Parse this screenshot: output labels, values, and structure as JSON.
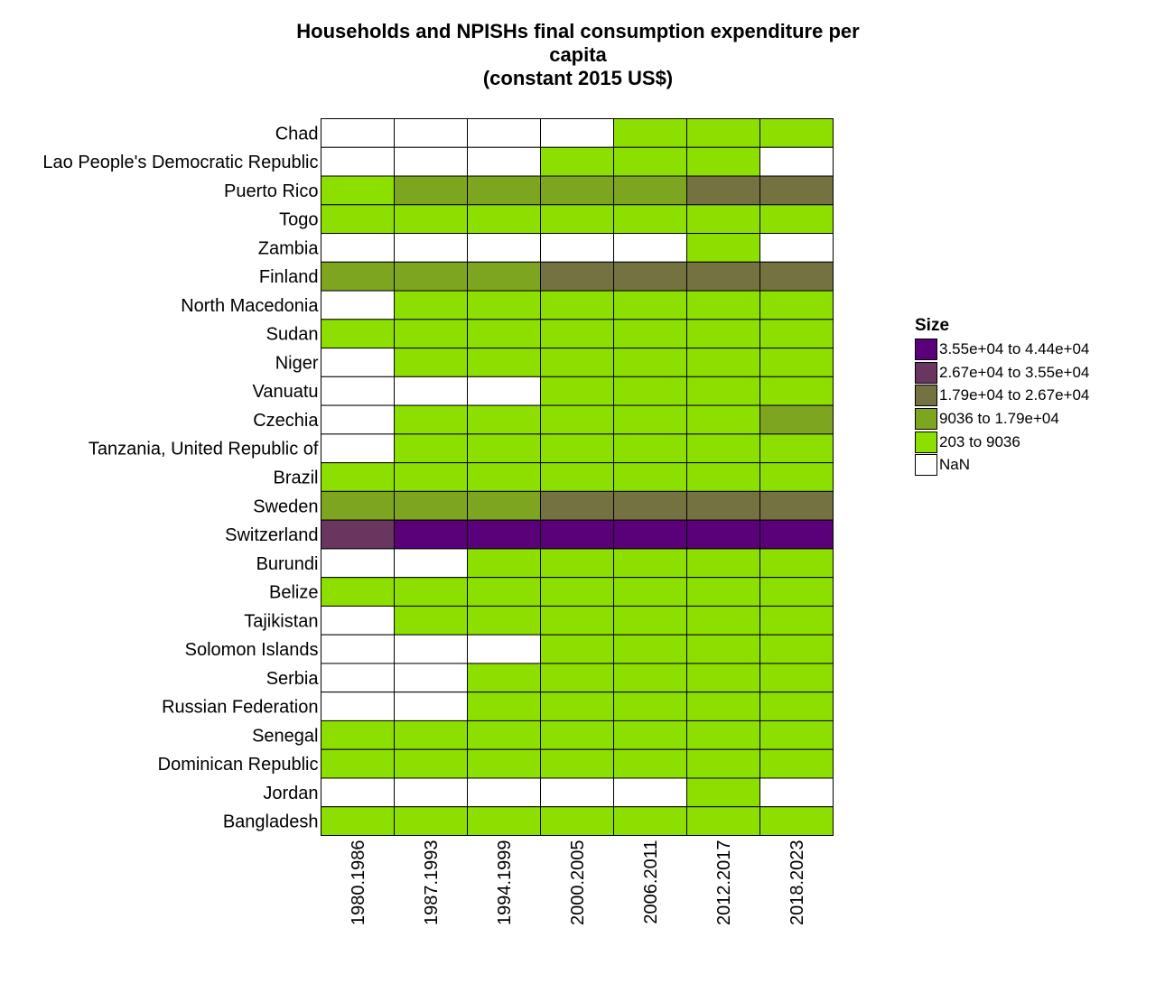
{
  "chart_data": {
    "type": "heatmap",
    "title": [
      "Households and NPISHs final consumption expenditure per",
      "capita",
      "(constant 2015 US$)"
    ],
    "xlabel": "",
    "ylabel": "",
    "x_categories": [
      "1980.1986",
      "1987.1993",
      "1994.1999",
      "2000.2005",
      "2006.2011",
      "2012.2017",
      "2018.2023"
    ],
    "y_categories": [
      "Chad",
      "Lao People's Democratic Republic",
      "Puerto Rico",
      "Togo",
      "Zambia",
      "Finland",
      "North Macedonia",
      "Sudan",
      "Niger",
      "Vanuatu",
      "Czechia",
      "Tanzania, United Republic of",
      "Brazil",
      "Sweden",
      "Switzerland",
      "Burundi",
      "Belize",
      "Tajikistan",
      "Solomon Islands",
      "Serbia",
      "Russian Federation",
      "Senegal",
      "Dominican Republic",
      "Jordan",
      "Bangladesh"
    ],
    "legend": {
      "title": "Size",
      "placement": "right",
      "bins": [
        {
          "label": "3.55e+04 to 4.44e+04",
          "color": "#5a0079"
        },
        {
          "label": "2.67e+04 to 3.55e+04",
          "color": "#68365e"
        },
        {
          "label": "1.79e+04 to 2.67e+04",
          "color": "#737240"
        },
        {
          "label": "9036 to 1.79e+04",
          "color": "#7ea51f"
        },
        {
          "label": "203 to 9036",
          "color": "#8ddf00"
        },
        {
          "label": "NaN",
          "color": "#ffffff"
        }
      ]
    },
    "cell_bins": [
      [
        5,
        5,
        5,
        5,
        4,
        4,
        4
      ],
      [
        5,
        5,
        5,
        4,
        4,
        4,
        5
      ],
      [
        4,
        3,
        3,
        3,
        3,
        2,
        2
      ],
      [
        4,
        4,
        4,
        4,
        4,
        4,
        4
      ],
      [
        5,
        5,
        5,
        5,
        5,
        4,
        5
      ],
      [
        3,
        3,
        3,
        2,
        2,
        2,
        2
      ],
      [
        5,
        4,
        4,
        4,
        4,
        4,
        4
      ],
      [
        4,
        4,
        4,
        4,
        4,
        4,
        4
      ],
      [
        5,
        4,
        4,
        4,
        4,
        4,
        4
      ],
      [
        5,
        5,
        5,
        4,
        4,
        4,
        4
      ],
      [
        5,
        4,
        4,
        4,
        4,
        4,
        3
      ],
      [
        5,
        4,
        4,
        4,
        4,
        4,
        4
      ],
      [
        4,
        4,
        4,
        4,
        4,
        4,
        4
      ],
      [
        3,
        3,
        3,
        2,
        2,
        2,
        2
      ],
      [
        1,
        0,
        0,
        0,
        0,
        0,
        0
      ],
      [
        5,
        5,
        4,
        4,
        4,
        4,
        4
      ],
      [
        4,
        4,
        4,
        4,
        4,
        4,
        4
      ],
      [
        5,
        4,
        4,
        4,
        4,
        4,
        4
      ],
      [
        5,
        5,
        5,
        4,
        4,
        4,
        4
      ],
      [
        5,
        5,
        4,
        4,
        4,
        4,
        4
      ],
      [
        5,
        5,
        4,
        4,
        4,
        4,
        4
      ],
      [
        4,
        4,
        4,
        4,
        4,
        4,
        4
      ],
      [
        4,
        4,
        4,
        4,
        4,
        4,
        4
      ],
      [
        5,
        5,
        5,
        5,
        5,
        4,
        5
      ],
      [
        4,
        4,
        4,
        4,
        4,
        4,
        4
      ]
    ]
  }
}
